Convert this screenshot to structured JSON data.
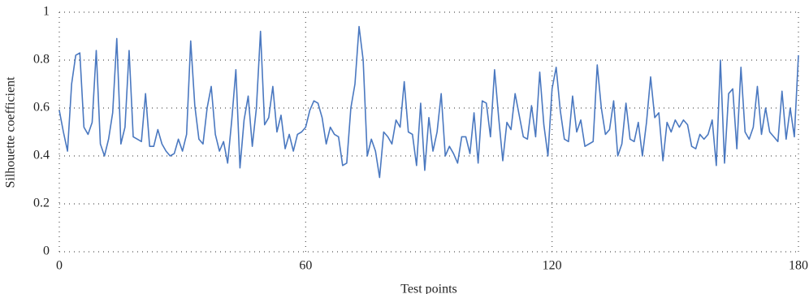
{
  "chart_data": {
    "type": "line",
    "x_label": "Test points",
    "y_label": "Silhouette coefficient",
    "x": [
      0,
      1,
      2,
      3,
      4,
      5,
      6,
      7,
      8,
      9,
      10,
      11,
      12,
      13,
      14,
      15,
      16,
      17,
      18,
      19,
      20,
      21,
      22,
      23,
      24,
      25,
      26,
      27,
      28,
      29,
      30,
      31,
      32,
      33,
      34,
      35,
      36,
      37,
      38,
      39,
      40,
      41,
      42,
      43,
      44,
      45,
      46,
      47,
      48,
      49,
      50,
      51,
      52,
      53,
      54,
      55,
      56,
      57,
      58,
      59,
      60,
      61,
      62,
      63,
      64,
      65,
      66,
      67,
      68,
      69,
      70,
      71,
      72,
      73,
      74,
      75,
      76,
      77,
      78,
      79,
      80,
      81,
      82,
      83,
      84,
      85,
      86,
      87,
      88,
      89,
      90,
      91,
      92,
      93,
      94,
      95,
      96,
      97,
      98,
      99,
      100,
      101,
      102,
      103,
      104,
      105,
      106,
      107,
      108,
      109,
      110,
      111,
      112,
      113,
      114,
      115,
      116,
      117,
      118,
      119,
      120,
      121,
      122,
      123,
      124,
      125,
      126,
      127,
      128,
      129,
      130,
      131,
      132,
      133,
      134,
      135,
      136,
      137,
      138,
      139,
      140,
      141,
      142,
      143,
      144,
      145,
      146,
      147,
      148,
      149,
      150,
      151,
      152,
      153,
      154,
      155,
      156,
      157,
      158,
      159,
      160,
      161,
      162,
      163,
      164,
      165,
      166,
      167,
      168,
      169,
      170,
      171,
      172,
      173,
      174,
      175,
      176,
      177,
      178,
      179,
      180
    ],
    "values": [
      0.59,
      0.5,
      0.42,
      0.7,
      0.82,
      0.83,
      0.52,
      0.49,
      0.54,
      0.84,
      0.45,
      0.4,
      0.47,
      0.58,
      0.89,
      0.45,
      0.52,
      0.84,
      0.48,
      0.47,
      0.46,
      0.66,
      0.44,
      0.44,
      0.51,
      0.45,
      0.42,
      0.4,
      0.41,
      0.47,
      0.42,
      0.49,
      0.88,
      0.61,
      0.47,
      0.45,
      0.6,
      0.69,
      0.49,
      0.42,
      0.46,
      0.37,
      0.55,
      0.76,
      0.35,
      0.55,
      0.65,
      0.44,
      0.6,
      0.92,
      0.53,
      0.56,
      0.69,
      0.5,
      0.57,
      0.43,
      0.49,
      0.42,
      0.49,
      0.5,
      0.52,
      0.59,
      0.63,
      0.62,
      0.56,
      0.45,
      0.52,
      0.49,
      0.48,
      0.36,
      0.37,
      0.6,
      0.7,
      0.94,
      0.8,
      0.4,
      0.47,
      0.42,
      0.31,
      0.5,
      0.48,
      0.45,
      0.55,
      0.52,
      0.71,
      0.5,
      0.49,
      0.36,
      0.62,
      0.34,
      0.56,
      0.42,
      0.5,
      0.66,
      0.4,
      0.44,
      0.41,
      0.37,
      0.48,
      0.48,
      0.41,
      0.58,
      0.37,
      0.63,
      0.62,
      0.48,
      0.76,
      0.56,
      0.38,
      0.54,
      0.51,
      0.66,
      0.57,
      0.48,
      0.47,
      0.61,
      0.48,
      0.75,
      0.53,
      0.4,
      0.68,
      0.77,
      0.59,
      0.47,
      0.46,
      0.65,
      0.5,
      0.55,
      0.44,
      0.45,
      0.46,
      0.78,
      0.6,
      0.49,
      0.51,
      0.63,
      0.4,
      0.45,
      0.62,
      0.47,
      0.46,
      0.54,
      0.4,
      0.54,
      0.73,
      0.56,
      0.58,
      0.38,
      0.54,
      0.5,
      0.55,
      0.52,
      0.55,
      0.53,
      0.44,
      0.43,
      0.49,
      0.47,
      0.49,
      0.55,
      0.36,
      0.8,
      0.37,
      0.66,
      0.68,
      0.43,
      0.77,
      0.5,
      0.47,
      0.52,
      0.69,
      0.49,
      0.6,
      0.5,
      0.48,
      0.46,
      0.67,
      0.47,
      0.6,
      0.48,
      0.82
    ],
    "color": "#4a78c0",
    "xlim": [
      0,
      180
    ],
    "xticks": [
      0,
      60,
      120,
      180
    ],
    "ylim": [
      0,
      1
    ],
    "yticks": [
      0,
      0.2,
      0.4,
      0.6,
      0.8,
      1
    ],
    "grid": true
  }
}
